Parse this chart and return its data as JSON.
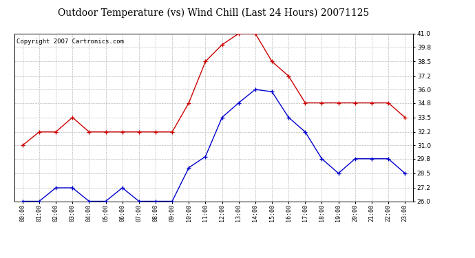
{
  "title": "Outdoor Temperature (vs) Wind Chill (Last 24 Hours) 20071125",
  "copyright": "Copyright 2007 Cartronics.com",
  "x_labels": [
    "00:00",
    "01:00",
    "02:00",
    "03:00",
    "04:00",
    "05:00",
    "06:00",
    "07:00",
    "08:00",
    "09:00",
    "10:00",
    "11:00",
    "12:00",
    "13:00",
    "14:00",
    "15:00",
    "16:00",
    "17:00",
    "18:00",
    "19:00",
    "20:00",
    "21:00",
    "22:00",
    "23:00"
  ],
  "temp_red": [
    31.0,
    32.2,
    32.2,
    33.5,
    32.2,
    32.2,
    32.2,
    32.2,
    32.2,
    32.2,
    34.8,
    38.5,
    40.0,
    41.0,
    41.0,
    38.5,
    37.2,
    34.8,
    34.8,
    34.8,
    34.8,
    34.8,
    34.8,
    33.5
  ],
  "wind_blue": [
    26.0,
    26.0,
    27.2,
    27.2,
    26.0,
    26.0,
    27.2,
    26.0,
    26.0,
    26.0,
    29.0,
    30.0,
    33.5,
    34.8,
    36.0,
    35.8,
    33.5,
    32.2,
    29.8,
    28.5,
    29.8,
    29.8,
    29.8,
    28.5
  ],
  "ylim": [
    26.0,
    41.0
  ],
  "yticks": [
    26.0,
    27.2,
    28.5,
    29.8,
    31.0,
    32.2,
    33.5,
    34.8,
    36.0,
    37.2,
    38.5,
    39.8,
    41.0
  ],
  "red_color": "#cc0000",
  "blue_color": "#0000cc",
  "bg_color": "#ffffff",
  "plot_bg_color": "#ffffff",
  "grid_color": "#bbbbbb",
  "title_fontsize": 10,
  "copyright_fontsize": 6.5
}
